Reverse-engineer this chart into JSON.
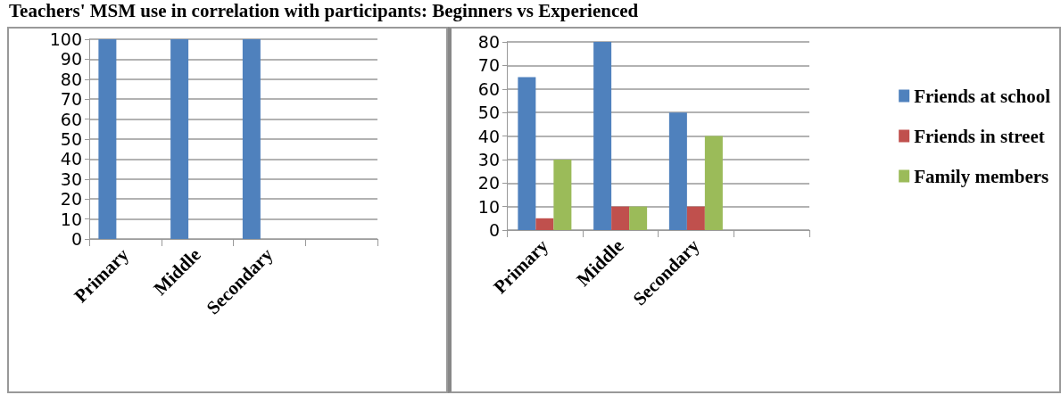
{
  "chart_data": [
    {
      "type": "bar",
      "title": "Teachers' MSM use in correlation with participants: Beginners vs Experienced",
      "categories": [
        "Primary",
        "Middle",
        "Secondary",
        null
      ],
      "series": [
        {
          "color": "#4f81bd",
          "values": [
            100,
            100,
            100,
            null
          ]
        },
        {
          "color": "#c0504d",
          "values": [
            0,
            0,
            0,
            null
          ]
        },
        {
          "color": "#9bbb59",
          "values": [
            0,
            0,
            0,
            null
          ]
        }
      ],
      "ylim": [
        0,
        100
      ],
      "yticks": [
        0,
        10,
        20,
        30,
        40,
        50,
        60,
        70,
        80,
        90,
        100
      ],
      "grid": "y"
    },
    {
      "type": "bar",
      "categories": [
        "Primary",
        "Middle",
        "Secondary",
        null
      ],
      "series": [
        {
          "name": "Friends at school",
          "color": "#4f81bd",
          "values": [
            65,
            80,
            50,
            null
          ]
        },
        {
          "name": "Friends in street",
          "color": "#c0504d",
          "values": [
            5,
            10,
            10,
            null
          ]
        },
        {
          "name": "Family members",
          "color": "#9bbb59",
          "values": [
            30,
            10,
            40,
            null
          ]
        }
      ],
      "ylim": [
        0,
        80
      ],
      "yticks": [
        0,
        10,
        20,
        30,
        40,
        50,
        60,
        70,
        80
      ],
      "grid": "y",
      "legend": "right"
    }
  ]
}
